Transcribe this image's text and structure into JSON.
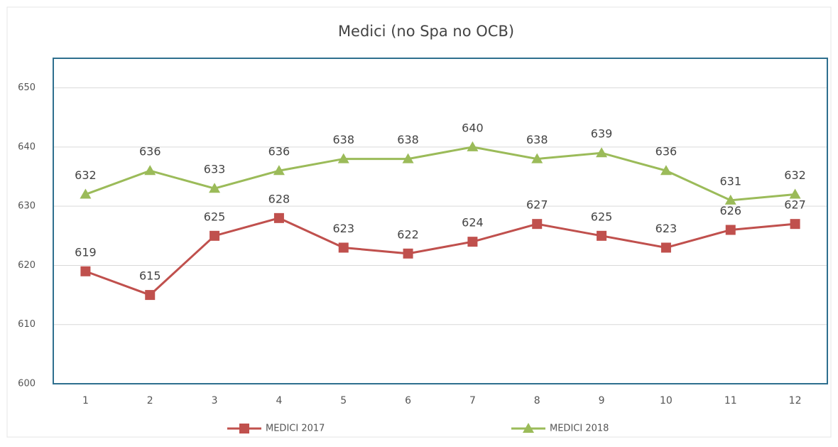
{
  "chart_data": {
    "type": "line",
    "title": "Medici (no Spa no OCB)",
    "categories": [
      "1",
      "2",
      "3",
      "4",
      "5",
      "6",
      "7",
      "8",
      "9",
      "10",
      "11",
      "12"
    ],
    "series": [
      {
        "name": "MEDICI 2017",
        "color": "#c0504d",
        "marker": "square",
        "values": [
          619,
          615,
          625,
          628,
          623,
          622,
          624,
          627,
          625,
          623,
          626,
          627
        ]
      },
      {
        "name": "MEDICI 2018",
        "color": "#9bbb59",
        "marker": "triangle",
        "values": [
          632,
          636,
          633,
          636,
          638,
          638,
          640,
          638,
          639,
          636,
          631,
          632
        ]
      }
    ],
    "ylim": [
      600,
      655
    ],
    "yticks": [
      600,
      610,
      620,
      630,
      640,
      650
    ],
    "grid": true,
    "legend": "bottom"
  }
}
